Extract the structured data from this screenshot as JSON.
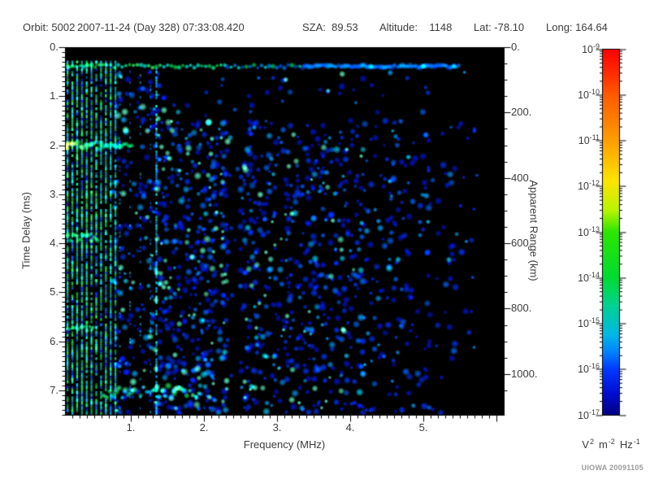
{
  "header": {
    "items": [
      {
        "id": "orbit",
        "text": "Orbit: 5002"
      },
      {
        "id": "datetime",
        "text": "2007-11-24 (Day 328) 07:33:08.420"
      },
      {
        "id": "sza",
        "text": "SZA:  89.53"
      },
      {
        "id": "altitude",
        "text": "Altitude:    1148"
      },
      {
        "id": "lat",
        "text": "Lat: -78.10"
      },
      {
        "id": "long",
        "text": "Long: 164.64"
      }
    ]
  },
  "credit": "UIOWA 20091105",
  "colors": {
    "page_bg": "#ffffff",
    "frame": "#000000",
    "text": "#3c3c3c",
    "credit_text": "#9a9a9a"
  },
  "chart_data": {
    "type": "heatmap",
    "title": "",
    "xlabel": "Frequency (MHz)",
    "ylabel_left": "Time Delay (ms)",
    "ylabel_right": "Apparent Range (km)",
    "xlim": [
      0.1,
      6.1
    ],
    "ylim_ms": [
      0,
      7.5
    ],
    "range_km_per_ms": 150,
    "background": "#000000",
    "xticks": {
      "values": [
        1,
        2,
        3,
        4,
        5
      ],
      "labels": [
        "1.",
        "2.",
        "3.",
        "4.",
        "5."
      ],
      "minor_step_mhz": 0.1
    },
    "yticks_left": {
      "values": [
        0,
        1,
        2,
        3,
        4,
        5,
        6,
        7
      ],
      "labels": [
        "0.",
        "1.",
        "2.",
        "3.",
        "4.",
        "5.",
        "6.",
        "7."
      ],
      "minor_step_ms": 0.1
    },
    "yticks_right": {
      "values": [
        0,
        200,
        400,
        600,
        800,
        1000
      ],
      "labels": [
        "0.",
        "200.",
        "400.",
        "600.",
        "800.",
        "1000."
      ],
      "minor_step_km": 50
    },
    "colorbar": {
      "scale": "log",
      "tick_exponents": [
        "-9",
        "-10",
        "-11",
        "-12",
        "-13",
        "-14",
        "-15",
        "-16",
        "-17"
      ],
      "unit_parts": [
        {
          "base": "V",
          "sup": "2"
        },
        {
          "base": "m",
          "sup": "-2"
        },
        {
          "base": "Hz",
          "sup": "-1"
        }
      ],
      "stops": [
        [
          "0",
          "#ff0000"
        ],
        [
          "0.07",
          "#ff2f00"
        ],
        [
          "0.125",
          "#ff5a00"
        ],
        [
          "0.25",
          "#ff9e00"
        ],
        [
          "0.36",
          "#ffe400"
        ],
        [
          "0.44",
          "#b8f500"
        ],
        [
          "0.5",
          "#2ce600"
        ],
        [
          "0.625",
          "#00dc32"
        ],
        [
          "0.7",
          "#00d292"
        ],
        [
          "0.78",
          "#00b8e6"
        ],
        [
          "0.83",
          "#0080ff"
        ],
        [
          "0.875",
          "#0038ff"
        ],
        [
          "0.94",
          "#000ed2"
        ],
        [
          "1",
          "#000082"
        ]
      ]
    },
    "features": {
      "leading_echo_band": {
        "delay_ms": [
          0.28,
          0.5
        ],
        "freq_mhz": [
          0.1,
          5.5
        ],
        "intensity": "1e-13 at low freq fading to 1e-15 at high freq"
      },
      "plasma_harmonic_stripes": {
        "first_freq_mhz": 0.135,
        "spacing_mhz": 0.0655,
        "count": 11,
        "delay_ms": [
          0.3,
          7.5
        ],
        "intensity": "1e-13 to 1e-15"
      },
      "local_echo_2ms": {
        "freq_mhz": [
          0.1,
          1.03
        ],
        "delay_ms": [
          1.88,
          2.14
        ],
        "peak_freq_mhz": 0.115,
        "peak_intensity": "1e-11"
      },
      "echo_3_9ms": {
        "freq_mhz": [
          0.1,
          0.58
        ],
        "delay_ms": [
          3.8,
          4.0
        ],
        "intensity": "1e-13"
      },
      "echo_5_7ms": {
        "freq_mhz": [
          0.12,
          0.5
        ],
        "delay_ms": [
          5.65,
          5.85
        ],
        "intensity": "1e-13"
      },
      "ground_trace": {
        "freq_mhz": [
          0.63,
          2.05
        ],
        "delay_ms": [
          6.85,
          7.25
        ],
        "intensity": "1e-13"
      },
      "interference_gap_freq_mhz": [
        2.36,
        2.53
      ],
      "cyan_line_freq_mhz": 1.35,
      "faint_harmonic_freqs_mhz": [
        0.85,
        0.99,
        1.13,
        1.27
      ],
      "speckle_regions": [
        {
          "freq_mhz": [
            0.78,
            1.33
          ],
          "density": 0.22,
          "brightness": 0.85
        },
        {
          "freq_mhz": [
            1.36,
            2.36
          ],
          "density": 0.5,
          "brightness": 1.0
        },
        {
          "freq_mhz": [
            2.36,
            2.53
          ],
          "density": 0.04,
          "brightness": 0.5
        },
        {
          "freq_mhz": [
            2.53,
            3.3
          ],
          "density": 0.34,
          "brightness": 0.75
        },
        {
          "freq_mhz": [
            3.3,
            4.2
          ],
          "density": 0.3,
          "brightness": 0.7
        },
        {
          "freq_mhz": [
            4.2,
            5.1
          ],
          "density": 0.2,
          "brightness": 0.55
        },
        {
          "freq_mhz": [
            5.1,
            5.75
          ],
          "density": 0.09,
          "brightness": 0.4
        }
      ],
      "sparse_below_delay_ms": 1.45
    },
    "palettes": {
      "speckle": [
        "#0016d8",
        "#0034ff",
        "#0066ff",
        "#00a2ff",
        "#00d8ff",
        "#60ffc8"
      ],
      "stripes_green": [
        "#00e050",
        "#2cff7c",
        "#00ffb4"
      ],
      "stripes_cyan": [
        "#00ffee",
        "#00c8ff"
      ],
      "stripes_blue": [
        "#0070ff",
        "#0030e0"
      ],
      "band_green": [
        "#00d448",
        "#3cff6e",
        "#00ff9a",
        "#00e8d8"
      ],
      "band_blue": [
        "#0052e8",
        "#0078ff",
        "#0094ff"
      ],
      "band_cyan_spot": "#00c8ff",
      "ground_center": [
        "#18e656",
        "#52ffa2",
        "#00ffc8"
      ],
      "ground_edge": [
        "#00c8a8",
        "#00b4ff",
        "#2ce87c"
      ],
      "blob2_yellow": [
        "#f0ff28",
        "#d6ff3a"
      ],
      "blob2_green": [
        "#6aff4e",
        "#30f06a"
      ],
      "blob2_tail": [
        "#00d26a",
        "#00c292"
      ],
      "blob2_core": "#ffff2e",
      "blob39": [
        "#2ce868",
        "#00d87c",
        "#46ffae"
      ],
      "faint_cyan_stripe": [
        "#00e0ff",
        "#00ffdc",
        "#0090ff"
      ]
    }
  }
}
